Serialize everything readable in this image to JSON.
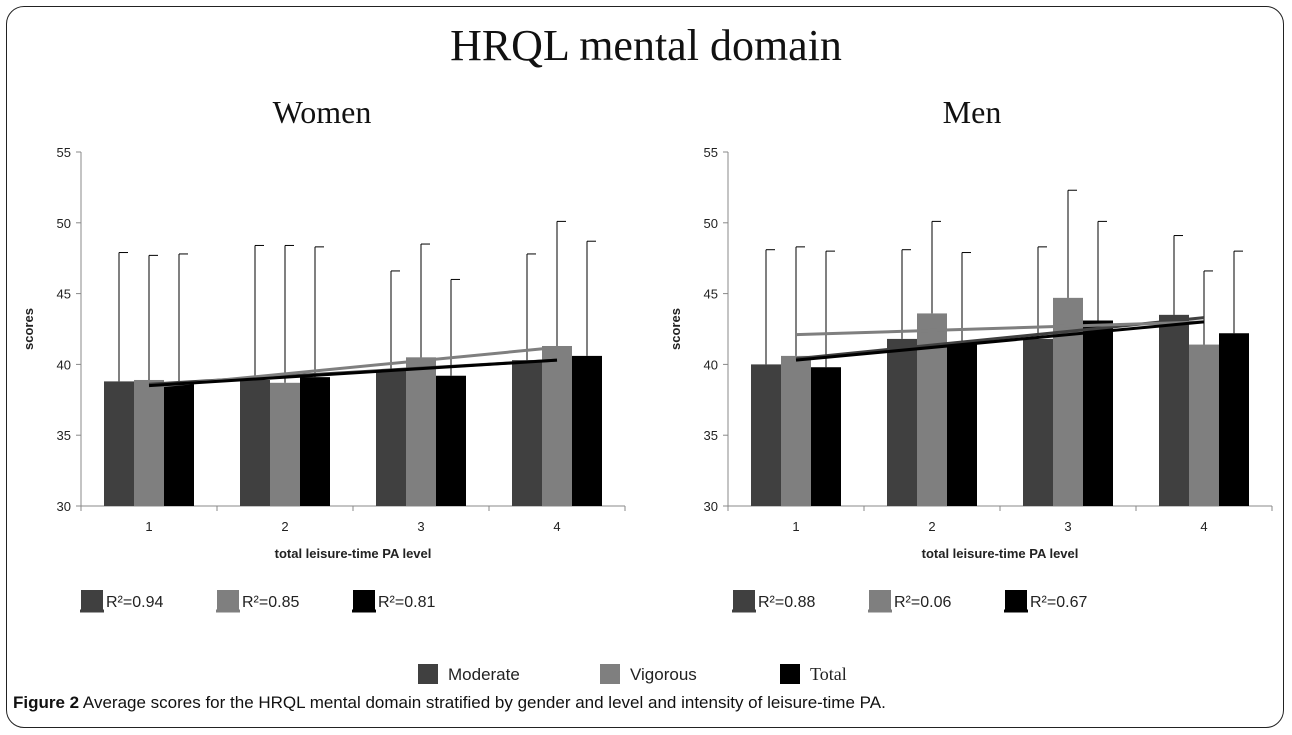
{
  "figure_title": "HRQL mental domain",
  "caption": {
    "label": "Figure 2",
    "text": "Average scores for the HRQL mental domain stratified by gender and level and intensity of leisure-time PA."
  },
  "legend": [
    {
      "name": "Moderate",
      "color": "#404040"
    },
    {
      "name": "Vigorous",
      "color": "#7f7f7f"
    },
    {
      "name": "Total",
      "color": "#000000"
    }
  ],
  "chart_data": [
    {
      "type": "bar",
      "title": "Women",
      "xlabel": "total leisure-time PA level",
      "ylabel": "scores",
      "ylim": [
        30,
        55
      ],
      "yticks": [
        "30",
        "35",
        "40",
        "45",
        "50",
        "55"
      ],
      "categories": [
        "1",
        "2",
        "3",
        "4"
      ],
      "series": [
        {
          "name": "Moderate",
          "color": "#404040",
          "values": [
            38.8,
            38.9,
            39.6,
            40.3
          ],
          "error_upper": [
            47.9,
            48.4,
            46.6,
            47.8
          ],
          "r2_label": "R²=0.94",
          "trend": [
            38.6,
            40.3
          ]
        },
        {
          "name": "Vigorous",
          "color": "#7f7f7f",
          "values": [
            38.9,
            38.7,
            40.5,
            41.3
          ],
          "error_upper": [
            47.7,
            48.4,
            48.5,
            50.1
          ],
          "r2_label": "R²=0.85",
          "trend": [
            38.4,
            41.2
          ]
        },
        {
          "name": "Total",
          "color": "#000000",
          "values": [
            38.7,
            39.1,
            39.2,
            40.6
          ],
          "error_upper": [
            47.8,
            48.3,
            46.0,
            48.7
          ],
          "r2_label": "R²=0.81",
          "trend": [
            38.5,
            40.3
          ]
        }
      ]
    },
    {
      "type": "bar",
      "title": "Men",
      "xlabel": "total leisure-time PA level",
      "ylabel": "scores",
      "ylim": [
        30,
        55
      ],
      "yticks": [
        "30",
        "35",
        "40",
        "45",
        "50",
        "55"
      ],
      "categories": [
        "1",
        "2",
        "3",
        "4"
      ],
      "series": [
        {
          "name": "Moderate",
          "color": "#404040",
          "values": [
            40.0,
            41.8,
            41.8,
            43.5
          ],
          "error_upper": [
            48.1,
            48.1,
            48.3,
            49.1
          ],
          "r2_label": "R²=0.88",
          "trend": [
            40.4,
            43.3
          ]
        },
        {
          "name": "Vigorous",
          "color": "#7f7f7f",
          "values": [
            40.6,
            43.6,
            44.7,
            41.4
          ],
          "error_upper": [
            48.3,
            50.1,
            52.3,
            46.6
          ],
          "r2_label": "R²=0.06",
          "trend": [
            42.1,
            43.0
          ]
        },
        {
          "name": "Total",
          "color": "#000000",
          "values": [
            39.8,
            41.5,
            43.1,
            42.2
          ],
          "error_upper": [
            48.0,
            47.9,
            50.1,
            48.0
          ],
          "r2_label": "R²=0.67",
          "trend": [
            40.3,
            43.0
          ]
        }
      ]
    }
  ]
}
